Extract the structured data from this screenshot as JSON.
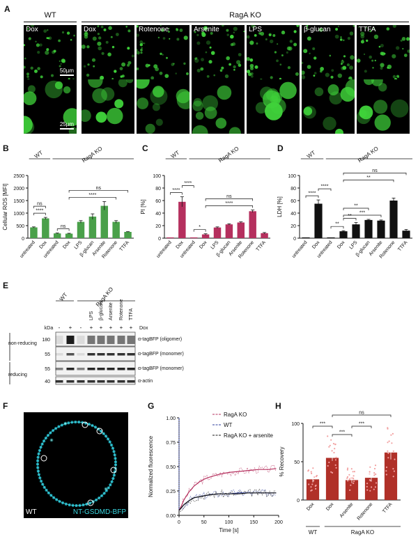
{
  "panels": {
    "a": "A",
    "b": "B",
    "c": "C",
    "d": "D",
    "e": "E",
    "f": "F",
    "g": "G",
    "h": "H"
  },
  "panelA": {
    "group_wt": "WT",
    "group_ko": "RagA KO",
    "columns": [
      "Dox",
      "Dox",
      "Rotenone",
      "Arsenite",
      "LPS",
      "β-glucan",
      "TTFA"
    ],
    "scalebar_top": "50µm",
    "scalebar_bottom": "25µm"
  },
  "bars_common": {
    "wt": "WT",
    "ko": "RagA KO",
    "ns": "ns",
    "categories": [
      "untreated",
      "Dox",
      "untreated",
      "Dox",
      "LPS",
      "β-glucan",
      "Arsenite",
      "Rotenone",
      "TTFA"
    ]
  },
  "chart_data": [
    {
      "type": "bar",
      "id": "B",
      "ylabel": "Cellular ROS [MFI]",
      "ylim": [
        0,
        2500
      ],
      "yticks": [
        0,
        500,
        1000,
        1500,
        2000,
        2500
      ],
      "categories": [
        "untreated",
        "Dox",
        "untreated",
        "Dox",
        "LPS",
        "β-glucan",
        "Arsenite",
        "Rotenone",
        "TTFA"
      ],
      "values": [
        430,
        790,
        190,
        180,
        650,
        860,
        1290,
        650,
        250
      ],
      "errors": [
        20,
        40,
        15,
        15,
        50,
        110,
        170,
        50,
        10
      ],
      "colors": [
        "#4aa04a",
        "#4aa04a",
        "#4aa04a",
        "#4aa04a",
        "#4aa04a",
        "#4aa04a",
        "#4aa04a",
        "#4aa04a",
        "#4aa04a"
      ],
      "sig": [
        {
          "a": 0,
          "b": 1,
          "t": "ns",
          "lvl": 2
        },
        {
          "a": 0,
          "b": 1,
          "t": "****",
          "lvl": 1
        },
        {
          "a": 2,
          "b": 3,
          "t": "ns",
          "lvl": 1
        },
        {
          "a": 3,
          "b": 7,
          "t": "****",
          "lvl": 1
        },
        {
          "a": 3,
          "b": 8,
          "t": "ns",
          "lvl": 2
        }
      ]
    },
    {
      "type": "bar",
      "id": "C",
      "ylabel": "PI [%]",
      "ylim": [
        0,
        100
      ],
      "yticks": [
        0,
        20,
        40,
        60,
        80,
        100
      ],
      "categories": [
        "untreated",
        "Dox",
        "untreated",
        "Dox",
        "LPS",
        "β-glucan",
        "Arsenite",
        "Rotenone",
        "TTFA"
      ],
      "values": [
        0,
        58,
        0,
        6,
        17,
        22,
        25,
        43,
        8
      ],
      "errors": [
        0,
        8,
        0,
        1,
        1,
        1,
        1,
        2,
        1
      ],
      "colors": [
        "#b5305e",
        "#b5305e",
        "#b5305e",
        "#b5305e",
        "#b5305e",
        "#b5305e",
        "#b5305e",
        "#b5305e",
        "#b5305e"
      ],
      "sig": [
        {
          "a": 0,
          "b": 1,
          "t": "****",
          "lvl": 1
        },
        {
          "a": 1,
          "b": 2,
          "t": "****",
          "lvl": 2
        },
        {
          "a": 2,
          "b": 3,
          "t": "*",
          "lvl": 1
        },
        {
          "a": 3,
          "b": 7,
          "t": "****",
          "lvl": 1
        },
        {
          "a": 3,
          "b": 7,
          "t": "ns",
          "lvl": 2
        }
      ]
    },
    {
      "type": "bar",
      "id": "D",
      "ylabel": "LDH [%]",
      "ylim": [
        0,
        100
      ],
      "yticks": [
        0,
        20,
        40,
        60,
        80,
        100
      ],
      "categories": [
        "untreated",
        "Dox",
        "untreated",
        "Dox",
        "LPS",
        "β-glucan",
        "Arsenite",
        "Rotenone",
        "TTFA"
      ],
      "values": [
        0,
        55,
        0,
        11,
        22,
        29,
        28,
        60,
        12
      ],
      "errors": [
        0,
        6,
        0,
        1,
        3,
        1,
        1,
        4,
        2
      ],
      "colors": [
        "#111111",
        "#111111",
        "#111111",
        "#111111",
        "#111111",
        "#111111",
        "#111111",
        "#111111",
        "#111111"
      ],
      "sig": [
        {
          "a": 0,
          "b": 1,
          "t": "****",
          "lvl": 1
        },
        {
          "a": 1,
          "b": 2,
          "t": "****",
          "lvl": 2
        },
        {
          "a": 2,
          "b": 3,
          "t": "**",
          "lvl": 1
        },
        {
          "a": 3,
          "b": 4,
          "t": "**",
          "lvl": 1
        },
        {
          "a": 3,
          "b": 5,
          "t": "**",
          "lvl": 2
        },
        {
          "a": 3,
          "b": 6,
          "t": "***",
          "lvl": 1
        },
        {
          "a": 3,
          "b": 7,
          "t": "**",
          "lvl": 3
        },
        {
          "a": 3,
          "b": 8,
          "t": "ns",
          "lvl": 4
        }
      ]
    },
    {
      "type": "line",
      "id": "G",
      "xlabel": "Time [s]",
      "ylabel": "Normalized fluorescence",
      "xlim": [
        0,
        200
      ],
      "ylim": [
        0,
        1
      ],
      "xticks": [
        0,
        50,
        100,
        150,
        200
      ],
      "yticks": [
        "0.00",
        "0.25",
        "0.50",
        "0.75",
        "1.00"
      ],
      "series": [
        {
          "name": "RagA KO",
          "color": "#b5305e",
          "x": [
            0,
            5,
            10,
            20,
            30,
            40,
            50,
            60,
            80,
            100,
            120,
            140,
            160,
            180,
            195
          ],
          "y": [
            0.05,
            0.1,
            0.16,
            0.24,
            0.3,
            0.34,
            0.37,
            0.39,
            0.42,
            0.44,
            0.45,
            0.46,
            0.47,
            0.47,
            0.48
          ]
        },
        {
          "name": "WT",
          "color": "#2c3e9e",
          "x": [
            0,
            5,
            10,
            20,
            30,
            40,
            50,
            60,
            80,
            100,
            120,
            140,
            160,
            180,
            195
          ],
          "y": [
            0.05,
            0.08,
            0.11,
            0.15,
            0.18,
            0.19,
            0.2,
            0.21,
            0.22,
            0.22,
            0.23,
            0.23,
            0.23,
            0.23,
            0.23
          ]
        },
        {
          "name": "RagA KO + arsenite",
          "color": "#1a1a1a",
          "x": [
            0,
            5,
            10,
            20,
            30,
            40,
            50,
            60,
            80,
            100,
            120,
            140,
            160,
            180,
            195
          ],
          "y": [
            0.05,
            0.08,
            0.11,
            0.15,
            0.18,
            0.19,
            0.2,
            0.21,
            0.22,
            0.22,
            0.22,
            0.23,
            0.23,
            0.23,
            0.23
          ]
        }
      ]
    },
    {
      "type": "bar",
      "id": "H",
      "ylabel": "% Recovery",
      "ylim": [
        0,
        100
      ],
      "yticks": [
        0,
        50,
        100
      ],
      "categories": [
        "Dox",
        "Dox",
        "Arsenite",
        "Rotenone",
        "TTFA"
      ],
      "values": [
        27,
        55,
        26,
        29,
        62
      ],
      "errors": [
        4,
        4,
        4,
        5,
        9
      ],
      "colors": [
        "#b03028",
        "#b03028",
        "#b03028",
        "#b03028",
        "#b03028"
      ],
      "sig": [
        {
          "a": 0,
          "b": 1,
          "t": "***",
          "lvl": 1
        },
        {
          "a": 1,
          "b": 2,
          "t": "***",
          "lvl": 2
        },
        {
          "a": 2,
          "b": 3,
          "t": "***",
          "lvl": 1
        },
        {
          "a": 1,
          "b": 4,
          "t": "ns",
          "lvl": 3
        }
      ],
      "groups": [
        "WT",
        "RagA KO"
      ]
    }
  ],
  "panelE": {
    "wt": "WT",
    "ko": "RagA KO",
    "lanes": [
      "",
      "",
      "",
      "LPS",
      "β-glucan",
      "Arsenite",
      "Rotenone",
      "TTFA"
    ],
    "dox_signs": [
      "-",
      "+",
      "-",
      "+",
      "+",
      "+",
      "+",
      "+"
    ],
    "dox_label": "Dox",
    "kda": "kDa",
    "section_nonreducing": "non-reducing",
    "section_reducing": "reducing",
    "markers": [
      "180",
      "55",
      "55",
      "40"
    ],
    "bands": [
      "α-tagBFP (oligomer)",
      "α-tagBFP (monomer)",
      "α-tagBFP (monomer)",
      "α-actin"
    ]
  },
  "panelF": {
    "wt": "WT",
    "protein": "NT-GSDMD-BFP"
  }
}
